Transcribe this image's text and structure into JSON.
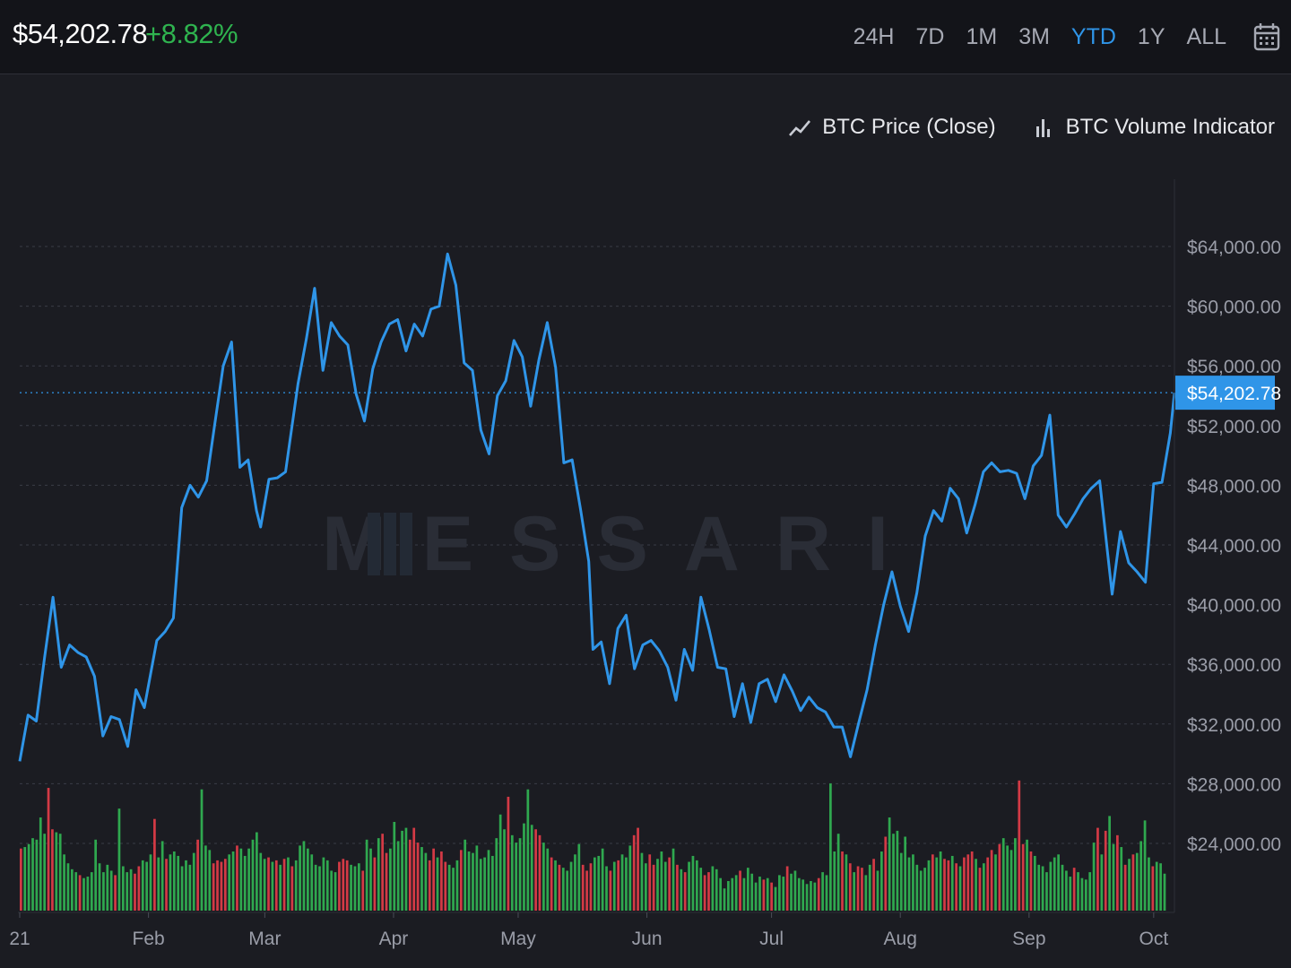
{
  "header": {
    "price": "$54,202.78",
    "change": "+8.82%",
    "ranges": [
      "24H",
      "7D",
      "1M",
      "3M",
      "YTD",
      "1Y",
      "ALL"
    ],
    "active_range": "YTD"
  },
  "legend": {
    "price_label": "BTC Price (Close)",
    "volume_label": "BTC Volume Indicator"
  },
  "watermark": "MESSARI",
  "colors": {
    "line": "#2f95e8",
    "volume_up": "#2fa84f",
    "volume_down": "#d33a45",
    "accent": "#2f95e8",
    "positive": "#2fb34f"
  },
  "chart_data": {
    "type": "line",
    "title": "",
    "xlabel": "",
    "ylabel": "",
    "ylim": [
      20000,
      66000
    ],
    "grid": true,
    "legend_position": "top-right",
    "y_ticks": [
      "$64,000.00",
      "$60,000.00",
      "$56,000.00",
      "$52,000.00",
      "$48,000.00",
      "$44,000.00",
      "$40,000.00",
      "$36,000.00",
      "$32,000.00",
      "$28,000.00",
      "$24,000.00"
    ],
    "y_tick_values": [
      64000,
      60000,
      56000,
      52000,
      48000,
      44000,
      40000,
      36000,
      32000,
      28000,
      24000
    ],
    "x_ticks": [
      {
        "label": "21",
        "date": "2021-01-01"
      },
      {
        "label": "Feb",
        "date": "2021-02-01"
      },
      {
        "label": "Mar",
        "date": "2021-03-01"
      },
      {
        "label": "Apr",
        "date": "2021-04-01"
      },
      {
        "label": "May",
        "date": "2021-05-01"
      },
      {
        "label": "Jun",
        "date": "2021-06-01"
      },
      {
        "label": "Jul",
        "date": "2021-07-01"
      },
      {
        "label": "Aug",
        "date": "2021-08-01"
      },
      {
        "label": "Sep",
        "date": "2021-09-01"
      },
      {
        "label": "Oct",
        "date": "2021-10-01"
      }
    ],
    "x_range": [
      "2021-01-01",
      "2021-10-06"
    ],
    "current_value_label": "$54,202.78",
    "current_value": 54202.78,
    "series": [
      {
        "name": "BTC Price (Close)",
        "points": [
          [
            "2021-01-01",
            29500
          ],
          [
            "2021-01-03",
            32600
          ],
          [
            "2021-01-05",
            32200
          ],
          [
            "2021-01-07",
            36500
          ],
          [
            "2021-01-09",
            40500
          ],
          [
            "2021-01-11",
            35800
          ],
          [
            "2021-01-13",
            37300
          ],
          [
            "2021-01-15",
            36800
          ],
          [
            "2021-01-17",
            36500
          ],
          [
            "2021-01-19",
            35200
          ],
          [
            "2021-01-21",
            31200
          ],
          [
            "2021-01-23",
            32500
          ],
          [
            "2021-01-25",
            32300
          ],
          [
            "2021-01-27",
            30500
          ],
          [
            "2021-01-29",
            34300
          ],
          [
            "2021-01-31",
            33100
          ],
          [
            "2021-02-03",
            37600
          ],
          [
            "2021-02-05",
            38200
          ],
          [
            "2021-02-07",
            39100
          ],
          [
            "2021-02-09",
            46500
          ],
          [
            "2021-02-11",
            48000
          ],
          [
            "2021-02-13",
            47200
          ],
          [
            "2021-02-15",
            48300
          ],
          [
            "2021-02-17",
            52200
          ],
          [
            "2021-02-19",
            56000
          ],
          [
            "2021-02-21",
            57600
          ],
          [
            "2021-02-23",
            49200
          ],
          [
            "2021-02-25",
            49700
          ],
          [
            "2021-02-27",
            46300
          ],
          [
            "2021-02-28",
            45200
          ],
          [
            "2021-03-02",
            48400
          ],
          [
            "2021-03-04",
            48500
          ],
          [
            "2021-03-06",
            48900
          ],
          [
            "2021-03-09",
            54800
          ],
          [
            "2021-03-11",
            57800
          ],
          [
            "2021-03-13",
            61200
          ],
          [
            "2021-03-15",
            55700
          ],
          [
            "2021-03-17",
            58900
          ],
          [
            "2021-03-19",
            58000
          ],
          [
            "2021-03-21",
            57400
          ],
          [
            "2021-03-23",
            54100
          ],
          [
            "2021-03-25",
            52300
          ],
          [
            "2021-03-27",
            55800
          ],
          [
            "2021-03-29",
            57600
          ],
          [
            "2021-03-31",
            58800
          ],
          [
            "2021-04-02",
            59100
          ],
          [
            "2021-04-04",
            57000
          ],
          [
            "2021-04-06",
            58800
          ],
          [
            "2021-04-08",
            58000
          ],
          [
            "2021-04-10",
            59800
          ],
          [
            "2021-04-12",
            60000
          ],
          [
            "2021-04-14",
            63500
          ],
          [
            "2021-04-16",
            61400
          ],
          [
            "2021-04-18",
            56200
          ],
          [
            "2021-04-20",
            55700
          ],
          [
            "2021-04-22",
            51700
          ],
          [
            "2021-04-24",
            50100
          ],
          [
            "2021-04-26",
            54000
          ],
          [
            "2021-04-28",
            55000
          ],
          [
            "2021-04-30",
            57700
          ],
          [
            "2021-05-02",
            56600
          ],
          [
            "2021-05-04",
            53300
          ],
          [
            "2021-05-06",
            56400
          ],
          [
            "2021-05-08",
            58900
          ],
          [
            "2021-05-10",
            55900
          ],
          [
            "2021-05-12",
            49500
          ],
          [
            "2021-05-14",
            49700
          ],
          [
            "2021-05-16",
            46400
          ],
          [
            "2021-05-18",
            42900
          ],
          [
            "2021-05-19",
            37000
          ],
          [
            "2021-05-21",
            37500
          ],
          [
            "2021-05-23",
            34700
          ],
          [
            "2021-05-25",
            38400
          ],
          [
            "2021-05-27",
            39300
          ],
          [
            "2021-05-29",
            35700
          ],
          [
            "2021-05-31",
            37300
          ],
          [
            "2021-06-02",
            37600
          ],
          [
            "2021-06-04",
            36900
          ],
          [
            "2021-06-06",
            35800
          ],
          [
            "2021-06-08",
            33600
          ],
          [
            "2021-06-10",
            37000
          ],
          [
            "2021-06-12",
            35600
          ],
          [
            "2021-06-14",
            40500
          ],
          [
            "2021-06-16",
            38300
          ],
          [
            "2021-06-18",
            35800
          ],
          [
            "2021-06-20",
            35700
          ],
          [
            "2021-06-22",
            32500
          ],
          [
            "2021-06-24",
            34700
          ],
          [
            "2021-06-26",
            32100
          ],
          [
            "2021-06-28",
            34700
          ],
          [
            "2021-06-30",
            35000
          ],
          [
            "2021-07-02",
            33500
          ],
          [
            "2021-07-04",
            35300
          ],
          [
            "2021-07-06",
            34200
          ],
          [
            "2021-07-08",
            32900
          ],
          [
            "2021-07-10",
            33800
          ],
          [
            "2021-07-12",
            33100
          ],
          [
            "2021-07-14",
            32800
          ],
          [
            "2021-07-16",
            31800
          ],
          [
            "2021-07-18",
            31800
          ],
          [
            "2021-07-20",
            29800
          ],
          [
            "2021-07-22",
            32100
          ],
          [
            "2021-07-24",
            34300
          ],
          [
            "2021-07-26",
            37300
          ],
          [
            "2021-07-28",
            40000
          ],
          [
            "2021-07-30",
            42200
          ],
          [
            "2021-08-01",
            39900
          ],
          [
            "2021-08-03",
            38200
          ],
          [
            "2021-08-05",
            40800
          ],
          [
            "2021-08-07",
            44600
          ],
          [
            "2021-08-09",
            46300
          ],
          [
            "2021-08-11",
            45600
          ],
          [
            "2021-08-13",
            47800
          ],
          [
            "2021-08-15",
            47100
          ],
          [
            "2021-08-17",
            44800
          ],
          [
            "2021-08-19",
            46700
          ],
          [
            "2021-08-21",
            48900
          ],
          [
            "2021-08-23",
            49500
          ],
          [
            "2021-08-25",
            48900
          ],
          [
            "2021-08-27",
            49000
          ],
          [
            "2021-08-29",
            48800
          ],
          [
            "2021-08-31",
            47100
          ],
          [
            "2021-09-02",
            49300
          ],
          [
            "2021-09-04",
            50000
          ],
          [
            "2021-09-06",
            52700
          ],
          [
            "2021-09-08",
            46000
          ],
          [
            "2021-09-10",
            45200
          ],
          [
            "2021-09-12",
            46100
          ],
          [
            "2021-09-14",
            47100
          ],
          [
            "2021-09-16",
            47800
          ],
          [
            "2021-09-18",
            48300
          ],
          [
            "2021-09-20",
            43200
          ],
          [
            "2021-09-21",
            40700
          ],
          [
            "2021-09-23",
            44900
          ],
          [
            "2021-09-25",
            42800
          ],
          [
            "2021-09-27",
            42200
          ],
          [
            "2021-09-29",
            41500
          ],
          [
            "2021-10-01",
            48100
          ],
          [
            "2021-10-03",
            48200
          ],
          [
            "2021-10-05",
            51500
          ],
          [
            "2021-10-06",
            54202.78
          ]
        ]
      },
      {
        "name": "BTC Volume Indicator",
        "note_scale": "relative",
        "values": [
          0.42,
          0.43,
          0.45,
          0.49,
          0.48,
          0.63,
          0.52,
          0.83,
          0.55,
          0.53,
          0.52,
          0.38,
          0.32,
          0.28,
          0.26,
          0.24,
          0.22,
          0.23,
          0.26,
          0.48,
          0.32,
          0.26,
          0.31,
          0.27,
          0.24,
          0.69,
          0.3,
          0.26,
          0.28,
          0.25,
          0.3,
          0.34,
          0.33,
          0.38,
          0.62,
          0.36,
          0.47,
          0.35,
          0.38,
          0.4,
          0.37,
          0.3,
          0.34,
          0.31,
          0.39,
          0.48,
          0.82,
          0.44,
          0.41,
          0.32,
          0.34,
          0.33,
          0.35,
          0.38,
          0.4,
          0.44,
          0.42,
          0.37,
          0.42,
          0.48,
          0.53,
          0.39,
          0.35,
          0.36,
          0.33,
          0.34,
          0.31,
          0.35,
          0.36,
          0.3,
          0.34,
          0.44,
          0.47,
          0.42,
          0.38,
          0.31,
          0.3,
          0.36,
          0.34,
          0.27,
          0.26,
          0.33,
          0.35,
          0.34,
          0.31,
          0.3,
          0.32,
          0.27,
          0.48,
          0.42,
          0.36,
          0.49,
          0.52,
          0.39,
          0.42,
          0.6,
          0.47,
          0.54,
          0.56,
          0.48,
          0.56,
          0.46,
          0.43,
          0.39,
          0.34,
          0.42,
          0.36,
          0.4,
          0.33,
          0.31,
          0.29,
          0.34,
          0.41,
          0.48,
          0.4,
          0.39,
          0.44,
          0.35,
          0.36,
          0.41,
          0.37,
          0.49,
          0.65,
          0.55,
          0.77,
          0.51,
          0.46,
          0.49,
          0.59,
          0.82,
          0.58,
          0.55,
          0.51,
          0.46,
          0.42,
          0.36,
          0.34,
          0.31,
          0.29,
          0.27,
          0.33,
          0.38,
          0.45,
          0.31,
          0.27,
          0.32,
          0.36,
          0.37,
          0.42,
          0.3,
          0.27,
          0.33,
          0.34,
          0.38,
          0.36,
          0.44,
          0.51,
          0.56,
          0.39,
          0.32,
          0.38,
          0.31,
          0.35,
          0.4,
          0.33,
          0.36,
          0.42,
          0.31,
          0.28,
          0.26,
          0.33,
          0.37,
          0.34,
          0.29,
          0.24,
          0.26,
          0.3,
          0.28,
          0.22,
          0.15,
          0.2,
          0.22,
          0.24,
          0.27,
          0.22,
          0.29,
          0.25,
          0.19,
          0.23,
          0.21,
          0.22,
          0.19,
          0.16,
          0.24,
          0.23,
          0.3,
          0.25,
          0.27,
          0.22,
          0.21,
          0.18,
          0.2,
          0.19,
          0.22,
          0.26,
          0.24,
          0.86,
          0.4,
          0.52,
          0.4,
          0.38,
          0.32,
          0.26,
          0.3,
          0.29,
          0.24,
          0.31,
          0.35,
          0.27,
          0.4,
          0.5,
          0.63,
          0.52,
          0.54,
          0.39,
          0.5,
          0.36,
          0.38,
          0.31,
          0.27,
          0.29,
          0.34,
          0.38,
          0.36,
          0.4,
          0.35,
          0.34,
          0.37,
          0.32,
          0.3,
          0.36,
          0.38,
          0.4,
          0.35,
          0.29,
          0.32,
          0.36,
          0.41,
          0.38,
          0.45,
          0.49,
          0.44,
          0.41,
          0.49,
          0.88,
          0.45,
          0.48,
          0.4,
          0.37,
          0.31,
          0.3,
          0.26,
          0.33,
          0.36,
          0.38,
          0.31,
          0.27,
          0.23,
          0.29,
          0.26,
          0.22,
          0.21,
          0.26,
          0.46,
          0.56,
          0.38,
          0.54,
          0.64,
          0.45,
          0.51,
          0.43,
          0.31,
          0.35,
          0.38,
          0.39,
          0.47,
          0.61,
          0.36,
          0.3,
          0.33,
          0.32,
          0.25
        ]
      }
    ]
  }
}
